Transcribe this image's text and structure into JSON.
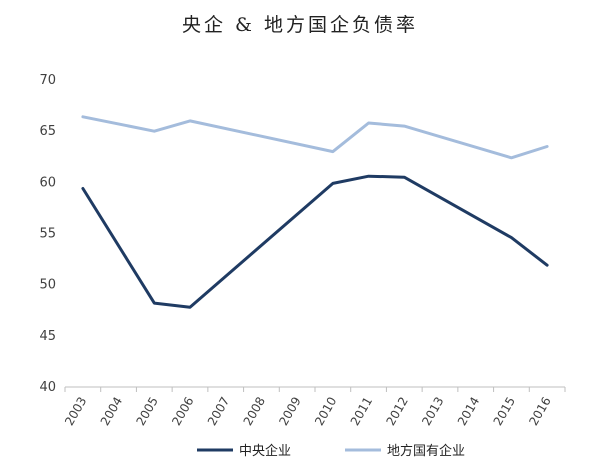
{
  "chart_data": {
    "type": "line",
    "title": "央企 & 地方国企负债率",
    "xlabel": "",
    "ylabel": "",
    "x": [
      "2003",
      "2004",
      "2005",
      "2006",
      "2007",
      "2008",
      "2009",
      "2010",
      "2011",
      "2012",
      "2013",
      "2014",
      "2015",
      "2016"
    ],
    "ylim": [
      40,
      70
    ],
    "yticks": [
      40,
      45,
      50,
      55,
      60,
      65,
      70
    ],
    "grid": false,
    "legend_position": "bottom",
    "series": [
      {
        "name": "中央企业",
        "color": "#1f3b63",
        "values": [
          59.4,
          null,
          48.2,
          47.8,
          null,
          null,
          null,
          59.9,
          60.6,
          60.5,
          null,
          null,
          54.6,
          51.9
        ]
      },
      {
        "name": "地方国有企业",
        "color": "#a4bcdc",
        "values": [
          66.4,
          null,
          65.0,
          66.0,
          null,
          null,
          null,
          63.0,
          65.8,
          65.5,
          null,
          null,
          62.4,
          63.5
        ]
      }
    ]
  }
}
